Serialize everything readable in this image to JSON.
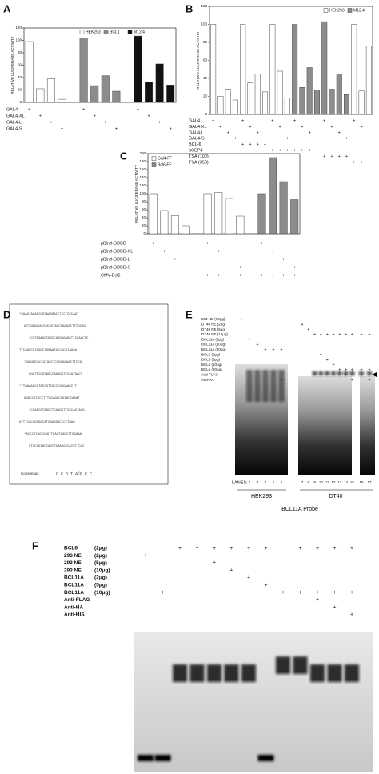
{
  "chart_data": [
    {
      "type": "bar",
      "panel_label": "A",
      "ylabel": "RELATIVE LUCIFERASE ACTIVITY",
      "ylim": [
        0,
        120
      ],
      "yticks": [
        0,
        20,
        40,
        60,
        80,
        100,
        120
      ],
      "legend": "upper center",
      "categories": [
        null,
        null,
        null,
        null,
        null,
        null,
        null,
        null,
        null,
        null,
        null,
        null
      ],
      "series": [
        {
          "name": "HEK293",
          "color": "#ffffff",
          "values": [
            98,
            22,
            38,
            5,
            null,
            null,
            null,
            null,
            null,
            null,
            null,
            null
          ]
        },
        {
          "name": "BCL1",
          "color": "#8c8c8c",
          "values": [
            null,
            null,
            null,
            null,
            104,
            27,
            43,
            18,
            null,
            null,
            null,
            null
          ]
        },
        {
          "name": "M12.4",
          "color": "#111111",
          "values": [
            null,
            null,
            null,
            null,
            null,
            null,
            null,
            null,
            107,
            33,
            62,
            28
          ]
        }
      ],
      "rows": [
        {
          "label": "GAL4",
          "marks": [
            "+",
            null,
            null,
            null,
            "+",
            null,
            null,
            null,
            "+",
            null,
            null,
            null
          ]
        },
        {
          "label": "GAL4-XL",
          "marks": [
            null,
            "+",
            null,
            null,
            null,
            "+",
            null,
            null,
            null,
            "+",
            null,
            null
          ]
        },
        {
          "label": "GAL4-L",
          "marks": [
            null,
            null,
            "+",
            null,
            null,
            null,
            "+",
            null,
            null,
            null,
            "+",
            null
          ]
        },
        {
          "label": "GAL4-S",
          "marks": [
            null,
            null,
            null,
            "+",
            null,
            null,
            null,
            "+",
            null,
            null,
            null,
            "+"
          ]
        }
      ]
    },
    {
      "type": "bar",
      "panel_label": "B",
      "ylabel": "RELATIVE LUCIFERASE ACTIVITY",
      "ylim": [
        0,
        120
      ],
      "yticks": [
        0,
        20,
        40,
        60,
        80,
        100,
        120
      ],
      "legend": "upper right",
      "categories": [
        null,
        null,
        null,
        null,
        null,
        null,
        null,
        null,
        null,
        null,
        null,
        null,
        null,
        null,
        null,
        null,
        null,
        null,
        null,
        null,
        null,
        null
      ],
      "series": [
        {
          "name": "HEK293",
          "color": "#ffffff",
          "values": [
            100,
            20,
            28,
            16,
            100,
            35,
            45,
            25,
            100,
            48,
            18,
            null,
            null,
            null,
            null,
            null,
            null,
            null,
            null,
            100,
            26,
            76
          ]
        },
        {
          "name": "M12.4",
          "color": "#8c8c8c",
          "values": [
            null,
            null,
            null,
            null,
            null,
            null,
            null,
            null,
            null,
            null,
            null,
            100,
            30,
            52,
            27,
            103,
            28,
            45,
            22,
            null,
            null,
            null
          ]
        }
      ],
      "rows": [
        {
          "label": "GAL4",
          "marks": [
            "+",
            null,
            null,
            null,
            "+",
            null,
            null,
            null,
            "+",
            null,
            null,
            "+",
            null,
            null,
            null,
            "+",
            null,
            null,
            null,
            "+",
            null,
            null
          ]
        },
        {
          "label": "GAL4-XL",
          "marks": [
            null,
            "+",
            null,
            null,
            null,
            "+",
            null,
            null,
            null,
            "+",
            null,
            null,
            "+",
            null,
            null,
            null,
            "+",
            null,
            null,
            null,
            "+",
            null
          ]
        },
        {
          "label": "GAL4-L",
          "marks": [
            null,
            null,
            "+",
            null,
            null,
            null,
            "+",
            null,
            null,
            null,
            null,
            null,
            null,
            "+",
            null,
            null,
            null,
            "+",
            null,
            null,
            null,
            null
          ]
        },
        {
          "label": "GAL4-S",
          "marks": [
            null,
            null,
            null,
            "+",
            null,
            null,
            null,
            "+",
            null,
            null,
            "+",
            null,
            null,
            null,
            "+",
            null,
            null,
            null,
            "+",
            null,
            null,
            "+"
          ]
        },
        {
          "label": "BCL-6",
          "marks": [
            null,
            null,
            null,
            null,
            "+",
            "+",
            "+",
            "+",
            null,
            null,
            null,
            null,
            null,
            null,
            null,
            null,
            null,
            null,
            null,
            null,
            null,
            null
          ]
        },
        {
          "label": "pCEP4",
          "marks": [
            null,
            null,
            null,
            null,
            null,
            null,
            null,
            null,
            "+",
            "+",
            "+",
            "+",
            "+",
            "+",
            "+",
            null,
            null,
            null,
            null,
            null,
            null,
            null
          ]
        },
        {
          "label": "TSA (100)",
          "marks": [
            null,
            null,
            null,
            null,
            null,
            null,
            null,
            null,
            null,
            null,
            null,
            null,
            null,
            null,
            null,
            "+",
            "+",
            "+",
            "+",
            null,
            null,
            null
          ]
        },
        {
          "label": "TSA (350)",
          "marks": [
            null,
            null,
            null,
            null,
            null,
            null,
            null,
            null,
            null,
            null,
            null,
            null,
            null,
            null,
            null,
            null,
            null,
            null,
            null,
            "+",
            "+",
            "+"
          ]
        }
      ]
    },
    {
      "type": "bar",
      "panel_label": "C",
      "ylabel": "RELATIVE LUCIFERASE ACTIVITY",
      "ylim": [
        0,
        200
      ],
      "yticks": [
        0,
        20,
        40,
        60,
        80,
        100,
        120,
        140,
        160,
        180,
        200
      ],
      "legend": "upper left",
      "categories": [
        null,
        null,
        null,
        null,
        null,
        null,
        null,
        null,
        null,
        null,
        null,
        null
      ],
      "series": [
        {
          "name": "Gal4-FF",
          "color": "#ffffff",
          "values": [
            100,
            58,
            45,
            20,
            100,
            103,
            88,
            44,
            null,
            null,
            null,
            null
          ]
        },
        {
          "name": "Bcl6-FF",
          "color": "#8c8c8c",
          "values": [
            null,
            null,
            null,
            null,
            null,
            null,
            null,
            null,
            100,
            190,
            130,
            85
          ]
        }
      ],
      "rows": [
        {
          "label": "pBind-GDBD",
          "marks": [
            "+",
            null,
            null,
            null,
            "+",
            null,
            null,
            null,
            "+",
            null,
            null,
            null
          ]
        },
        {
          "label": "pBind-GDBD-XL",
          "marks": [
            null,
            "+",
            null,
            null,
            null,
            "+",
            null,
            null,
            null,
            "+",
            null,
            null
          ]
        },
        {
          "label": "pBind-GDBD-L",
          "marks": [
            null,
            null,
            "+",
            null,
            null,
            null,
            "+",
            null,
            null,
            null,
            "+",
            null
          ]
        },
        {
          "label": "pBind-GDBD-S",
          "marks": [
            null,
            null,
            null,
            "+",
            null,
            null,
            null,
            "+",
            null,
            null,
            null,
            "+"
          ]
        },
        {
          "label": "CMV-Bcl6",
          "marks": [
            null,
            null,
            null,
            null,
            "+",
            "+",
            "+",
            "+",
            "+",
            "+",
            "+",
            "+"
          ]
        }
      ]
    }
  ],
  "panel_d": {
    "panel_label": "D",
    "lines": [
      "*CAAGTAAACCCGTAAGGACCTCCTCCCAAT",
      "ACTGGAGGACCGCCGTACCTAGGACTTTGCAG",
      "*CCTGGAACCGGCCATGAGAGCTTCCAACTC",
      "TTCAGCCGTAGCCTGGAATGCCACGTAGCA",
      "*GAGGTCACCGTGCCTCCGGAGAACTTCCG",
      "CGATTCCGTAGCCAAGGGTCCCATGACT",
      "*TTGAAACCGTACCGTTACCCGGGAACCTT",
      "AGGCCGTGCCTTTGCAGACCGTACCAAGT",
      "*CCACCGTAGCCTCAGGGTTCCCAGTACG",
      "GTTTCACCGTGCCATCAAGGACCCCTGAG",
      "*ACCCGTAGCCGGTTCAGTCACCTTGGAAA",
      "CTGCCGTACCAGTTGAAGGCCATCTTCAC"
    ],
    "consensus_label": "Consensus",
    "consensus": "C C G T A/G C C"
  },
  "panel_e": {
    "panel_label": "E",
    "lanes_label": "LANES:",
    "lanes": [
      "1",
      "2",
      "3",
      "4",
      "5",
      "6",
      "7",
      "8",
      "9",
      "10",
      "11",
      "12",
      "13",
      "14",
      "15",
      "16",
      "17"
    ],
    "conditions": [
      {
        "label": "293 NE (10μg)",
        "marks": [
          "+",
          null,
          null,
          null,
          null,
          null,
          null,
          null,
          null,
          null,
          null,
          null,
          null,
          null,
          null,
          null,
          null
        ]
      },
      {
        "label": "DT40 NE (2μg)",
        "marks": [
          null,
          null,
          null,
          null,
          null,
          null,
          "+",
          null,
          null,
          null,
          null,
          null,
          null,
          null,
          null,
          null,
          null
        ]
      },
      {
        "label": "DT40 NE (5μg)",
        "marks": [
          null,
          null,
          null,
          null,
          null,
          null,
          null,
          "+",
          null,
          null,
          null,
          null,
          null,
          null,
          null,
          null,
          null
        ]
      },
      {
        "label": "DT40 NE (10μg)",
        "marks": [
          null,
          null,
          null,
          null,
          null,
          null,
          null,
          null,
          "+",
          "+",
          "+",
          "+",
          "+",
          "+",
          "+",
          "+",
          "+"
        ]
      },
      {
        "label": "BCL11A (5μg)",
        "marks": [
          null,
          "+",
          null,
          null,
          null,
          null,
          null,
          null,
          null,
          null,
          null,
          null,
          null,
          null,
          null,
          null,
          null
        ]
      },
      {
        "label": "BCL11A (10μg)",
        "marks": [
          null,
          null,
          "+",
          null,
          null,
          null,
          null,
          null,
          null,
          null,
          null,
          null,
          null,
          null,
          null,
          null,
          null
        ]
      },
      {
        "label": "BCL11A (20μg)",
        "marks": [
          null,
          null,
          null,
          "+",
          "+",
          "+",
          null,
          null,
          null,
          null,
          null,
          null,
          null,
          null,
          null,
          null,
          null
        ]
      },
      {
        "label": "BCL6 (2μg)",
        "marks": [
          null,
          null,
          null,
          null,
          null,
          null,
          null,
          null,
          null,
          "+",
          null,
          null,
          null,
          null,
          null,
          null,
          null
        ]
      },
      {
        "label": "BCL6 (5μg)",
        "marks": [
          null,
          null,
          null,
          null,
          null,
          null,
          null,
          null,
          null,
          null,
          "+",
          null,
          null,
          null,
          null,
          null,
          null
        ]
      },
      {
        "label": "BCL6 (10μg)",
        "marks": [
          null,
          null,
          null,
          null,
          null,
          null,
          null,
          null,
          null,
          null,
          null,
          "+",
          null,
          null,
          null,
          null,
          null
        ]
      },
      {
        "label": "BCL6 (20μg)",
        "marks": [
          null,
          null,
          null,
          null,
          null,
          null,
          null,
          null,
          null,
          null,
          null,
          null,
          "+",
          "+",
          "+",
          "+",
          "+"
        ]
      },
      {
        "label": "Anti-FLAG",
        "marks": [
          null,
          null,
          null,
          null,
          "+",
          null,
          null,
          null,
          null,
          null,
          null,
          null,
          null,
          "+",
          null,
          "+",
          null
        ]
      },
      {
        "label": "Anti-HA",
        "marks": [
          null,
          null,
          null,
          null,
          null,
          "+",
          null,
          null,
          null,
          null,
          null,
          null,
          null,
          null,
          "+",
          null,
          "+"
        ]
      }
    ],
    "groups": [
      "HEK293",
      "DT40"
    ],
    "probe": "BCL11A Probe"
  },
  "panel_f": {
    "panel_label": "F",
    "conditions": [
      {
        "label": "BCL6",
        "amount": "(2μg)",
        "marks": [
          null,
          null,
          "+",
          "+",
          "+",
          "+",
          "+",
          "+",
          null,
          "+",
          "+",
          "+",
          "+"
        ]
      },
      {
        "label": "293 NE",
        "amount": "(2μg)",
        "marks": [
          "+",
          null,
          null,
          "+",
          null,
          null,
          null,
          null,
          null,
          null,
          null,
          null,
          null
        ]
      },
      {
        "label": "293 NE",
        "amount": "(5μg)",
        "marks": [
          null,
          null,
          null,
          null,
          "+",
          null,
          null,
          null,
          null,
          null,
          null,
          null,
          null
        ]
      },
      {
        "label": "293 NE",
        "amount": "(10μg)",
        "marks": [
          null,
          null,
          null,
          null,
          null,
          "+",
          null,
          null,
          null,
          null,
          null,
          null,
          null
        ]
      },
      {
        "label": "BCL11A",
        "amount": "(2μg)",
        "marks": [
          null,
          null,
          null,
          null,
          null,
          null,
          "+",
          null,
          null,
          null,
          null,
          null,
          null
        ]
      },
      {
        "label": "BCL11A",
        "amount": "(5μg)",
        "marks": [
          null,
          null,
          null,
          null,
          null,
          null,
          null,
          "+",
          null,
          null,
          null,
          null,
          null
        ]
      },
      {
        "label": "BCL11A",
        "amount": "(10μg)",
        "marks": [
          null,
          "+",
          null,
          null,
          null,
          null,
          null,
          null,
          "+",
          "+",
          "+",
          "+",
          "+"
        ]
      },
      {
        "label": "Anti-FLAG",
        "amount": null,
        "marks": [
          null,
          null,
          null,
          null,
          null,
          null,
          null,
          null,
          null,
          null,
          "+",
          null,
          null
        ]
      },
      {
        "label": "Anti-HA",
        "amount": null,
        "marks": [
          null,
          null,
          null,
          null,
          null,
          null,
          null,
          null,
          null,
          null,
          null,
          "+",
          null
        ]
      },
      {
        "label": "Anti-HIS",
        "amount": null,
        "marks": [
          null,
          null,
          null,
          null,
          null,
          null,
          null,
          null,
          null,
          null,
          null,
          null,
          "+"
        ]
      }
    ]
  }
}
